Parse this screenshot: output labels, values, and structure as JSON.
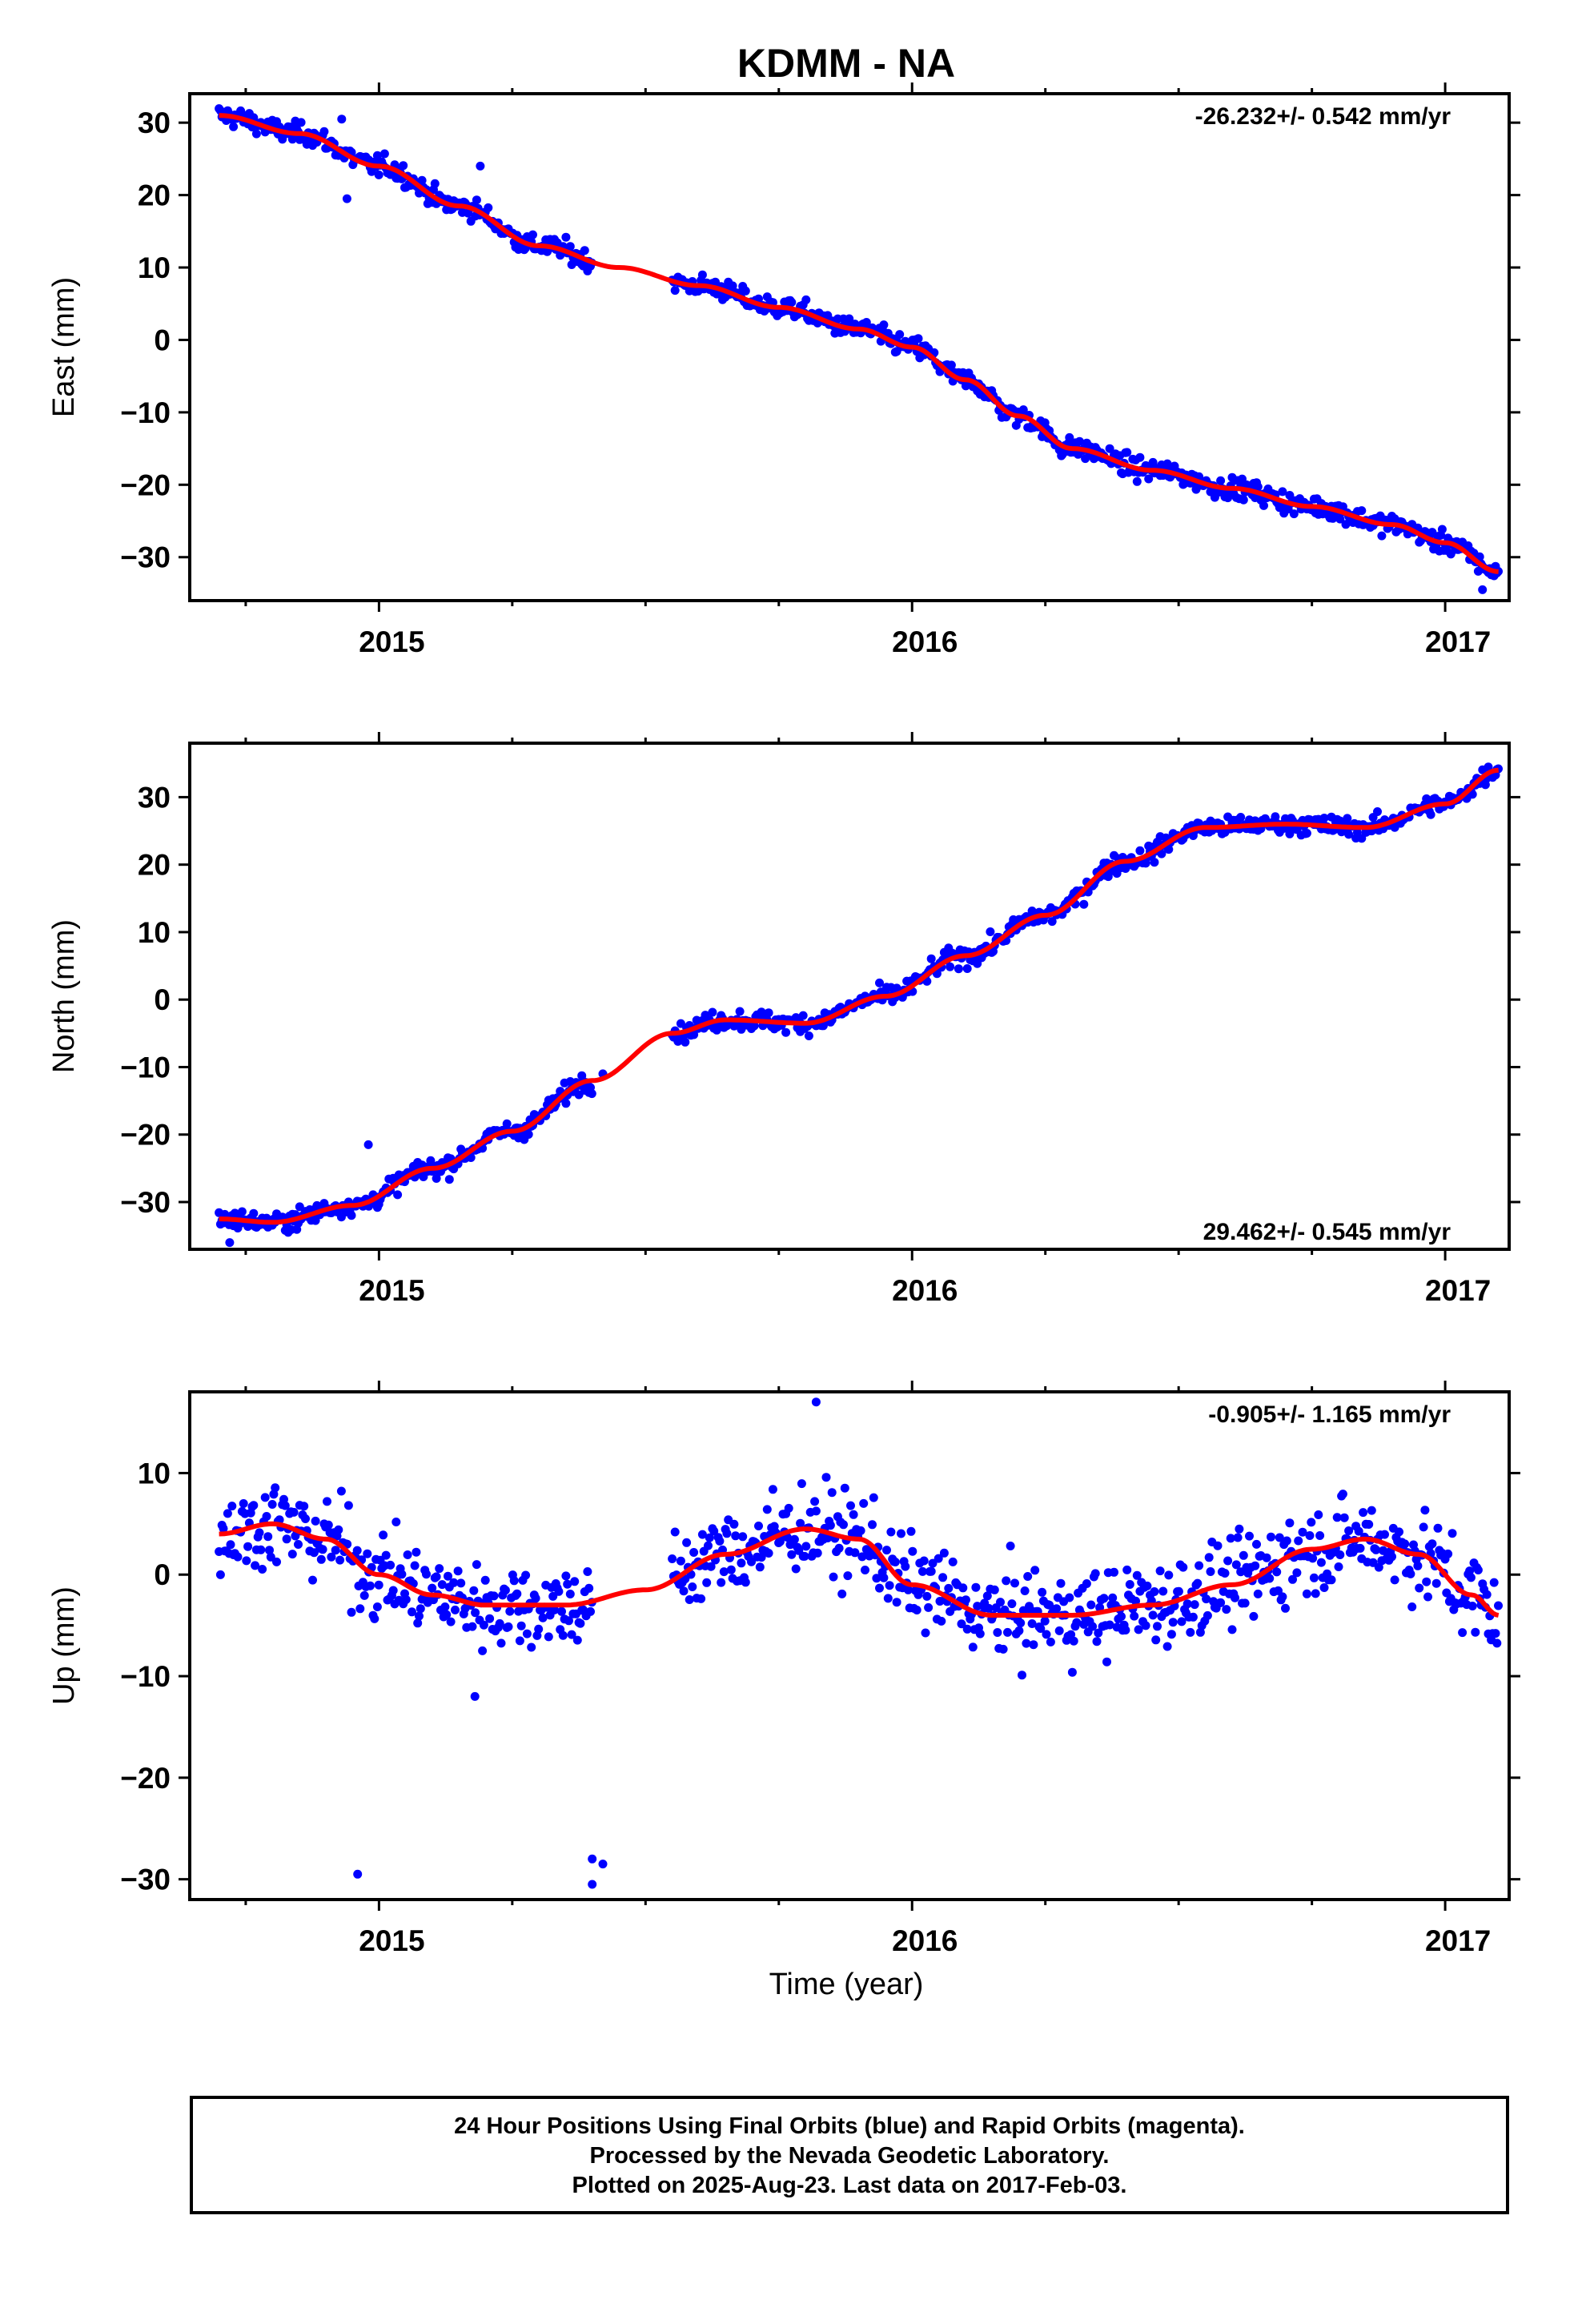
{
  "chart_data": {
    "title": "KDMM - NA",
    "xlabel": "Time (year)",
    "xlim": [
      2014.645,
      2017.12
    ],
    "x_ticks": [
      2015,
      2016,
      2017
    ],
    "x_tick_labels": [
      "2015",
      "2016",
      "2017"
    ],
    "colors": {
      "points": "#0000ff",
      "fit": "#ff0000",
      "frame": "#000000"
    },
    "panels": [
      {
        "type": "scatter",
        "ylabel": "East (mm)",
        "ylim": [
          -36,
          34
        ],
        "y_ticks": [
          30,
          20,
          10,
          0,
          -10,
          -20,
          -30
        ],
        "y_tick_labels": [
          "30",
          "20",
          "10",
          "0",
          "−10",
          "−20",
          "−30"
        ],
        "rate_label": "-26.232+/- 0.542 mm/yr",
        "rate_position": "top-right",
        "segments": [
          [
            2014.7,
            2015.4
          ],
          [
            2015.55,
            2017.1
          ]
        ],
        "fit": {
          "x": [
            2014.7,
            2014.85,
            2015.0,
            2015.15,
            2015.3,
            2015.45,
            2015.6,
            2015.75,
            2015.9,
            2016.0,
            2016.1,
            2016.2,
            2016.3,
            2016.45,
            2016.6,
            2016.75,
            2016.9,
            2017.0,
            2017.1
          ],
          "y": [
            31.0,
            28.5,
            24.0,
            18.5,
            13.0,
            10.0,
            7.5,
            4.5,
            1.5,
            -1.0,
            -5.5,
            -10.5,
            -15.0,
            -18.0,
            -20.5,
            -23.0,
            -25.5,
            -28.0,
            -32.0
          ]
        },
        "outliers": [
          {
            "x": 2015.19,
            "y": 24.0
          },
          {
            "x": 2014.93,
            "y": 30.5
          },
          {
            "x": 2014.94,
            "y": 19.5
          },
          {
            "x": 2016.28,
            "y": -16.0
          },
          {
            "x": 2017.07,
            "y": -34.5
          }
        ]
      },
      {
        "type": "scatter",
        "ylabel": "North (mm)",
        "ylim": [
          -37,
          38
        ],
        "y_ticks": [
          30,
          20,
          10,
          0,
          -10,
          -20,
          -30
        ],
        "y_tick_labels": [
          "30",
          "20",
          "10",
          "0",
          "−10",
          "−20",
          "−30"
        ],
        "rate_label": "29.462+/- 0.545 mm/yr",
        "rate_position": "bottom-right",
        "segments": [
          [
            2014.7,
            2015.4
          ],
          [
            2015.55,
            2017.1
          ]
        ],
        "fit": {
          "x": [
            2014.7,
            2014.8,
            2014.95,
            2015.1,
            2015.25,
            2015.4,
            2015.55,
            2015.65,
            2015.8,
            2015.95,
            2016.1,
            2016.25,
            2016.4,
            2016.55,
            2016.7,
            2016.85,
            2017.0,
            2017.1
          ],
          "y": [
            -32.5,
            -33.0,
            -30.5,
            -25.0,
            -19.5,
            -12.0,
            -5.0,
            -3.0,
            -3.5,
            0.5,
            6.5,
            12.5,
            20.5,
            25.5,
            26.0,
            25.5,
            29.0,
            34.0
          ]
        },
        "outliers": [
          {
            "x": 2014.72,
            "y": -36.0
          },
          {
            "x": 2014.98,
            "y": -21.5
          },
          {
            "x": 2015.42,
            "y": -11.0
          }
        ]
      },
      {
        "type": "scatter",
        "ylabel": "Up (mm)",
        "ylim": [
          -32,
          18
        ],
        "y_ticks": [
          10,
          0,
          -10,
          -20,
          -30
        ],
        "y_tick_labels": [
          "10",
          "0",
          "−10",
          "−20",
          "−30"
        ],
        "rate_label": "-0.905+/- 1.165 mm/yr",
        "rate_position": "top-right",
        "segments": [
          [
            2014.7,
            2015.4
          ],
          [
            2015.55,
            2017.1
          ]
        ],
        "fit": {
          "x": [
            2014.7,
            2014.8,
            2014.9,
            2015.0,
            2015.1,
            2015.2,
            2015.35,
            2015.5,
            2015.65,
            2015.8,
            2015.9,
            2016.0,
            2016.15,
            2016.3,
            2016.45,
            2016.6,
            2016.75,
            2016.85,
            2016.95,
            2017.05,
            2017.1
          ],
          "y": [
            4.0,
            5.0,
            3.5,
            0.0,
            -2.0,
            -3.0,
            -3.0,
            -1.5,
            2.0,
            4.5,
            3.5,
            -1.0,
            -4.0,
            -4.0,
            -3.0,
            -1.0,
            2.5,
            3.5,
            2.0,
            -2.0,
            -4.0
          ]
        },
        "outliers": [
          {
            "x": 2014.96,
            "y": -29.5
          },
          {
            "x": 2015.4,
            "y": -28.0
          },
          {
            "x": 2015.4,
            "y": -30.5
          },
          {
            "x": 2015.42,
            "y": -28.5
          },
          {
            "x": 2015.82,
            "y": 17.0
          },
          {
            "x": 2015.18,
            "y": -12.0
          }
        ]
      }
    ]
  },
  "footer": {
    "line1": "24 Hour Positions Using Final Orbits (blue) and Rapid Orbits (magenta).",
    "line2": "Processed by the Nevada Geodetic Laboratory.",
    "line3": "Plotted on 2025-Aug-23. Last data on 2017-Feb-03."
  }
}
